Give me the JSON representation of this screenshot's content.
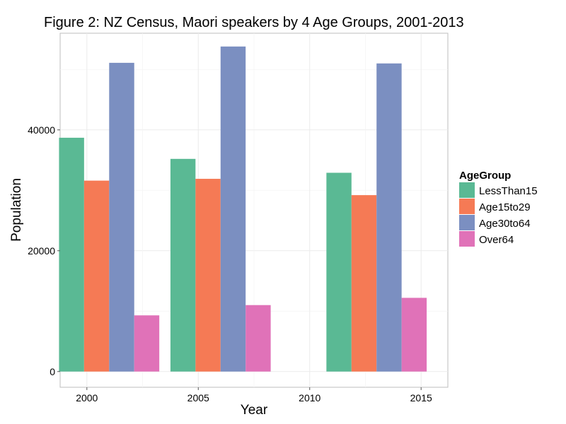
{
  "chart_data": {
    "type": "bar",
    "title": "Figure 2: NZ Census, Maori speakers by 4 Age Groups, 2001-2013",
    "xlabel": "Year",
    "ylabel": "Population",
    "x_ticks": [
      2000,
      2005,
      2010,
      2015
    ],
    "y_ticks": [
      0,
      20000,
      40000
    ],
    "xlim": [
      1998.8,
      2016.2
    ],
    "ylim": [
      -2600,
      56000
    ],
    "categories": [
      2001,
      2006,
      2013
    ],
    "grid": true,
    "legend_position": "right",
    "legend_title": "AgeGroup",
    "series": [
      {
        "name": "LessThan15",
        "color": "#5ab994",
        "values": [
          38700,
          35200,
          32900
        ]
      },
      {
        "name": "Age15to29",
        "color": "#f57a55",
        "values": [
          31600,
          31900,
          29200
        ]
      },
      {
        "name": "Age30to64",
        "color": "#7b8fc1",
        "values": [
          51100,
          53800,
          51000
        ]
      },
      {
        "name": "Over64",
        "color": "#e072b8",
        "values": [
          9300,
          11000,
          12200
        ]
      }
    ]
  }
}
